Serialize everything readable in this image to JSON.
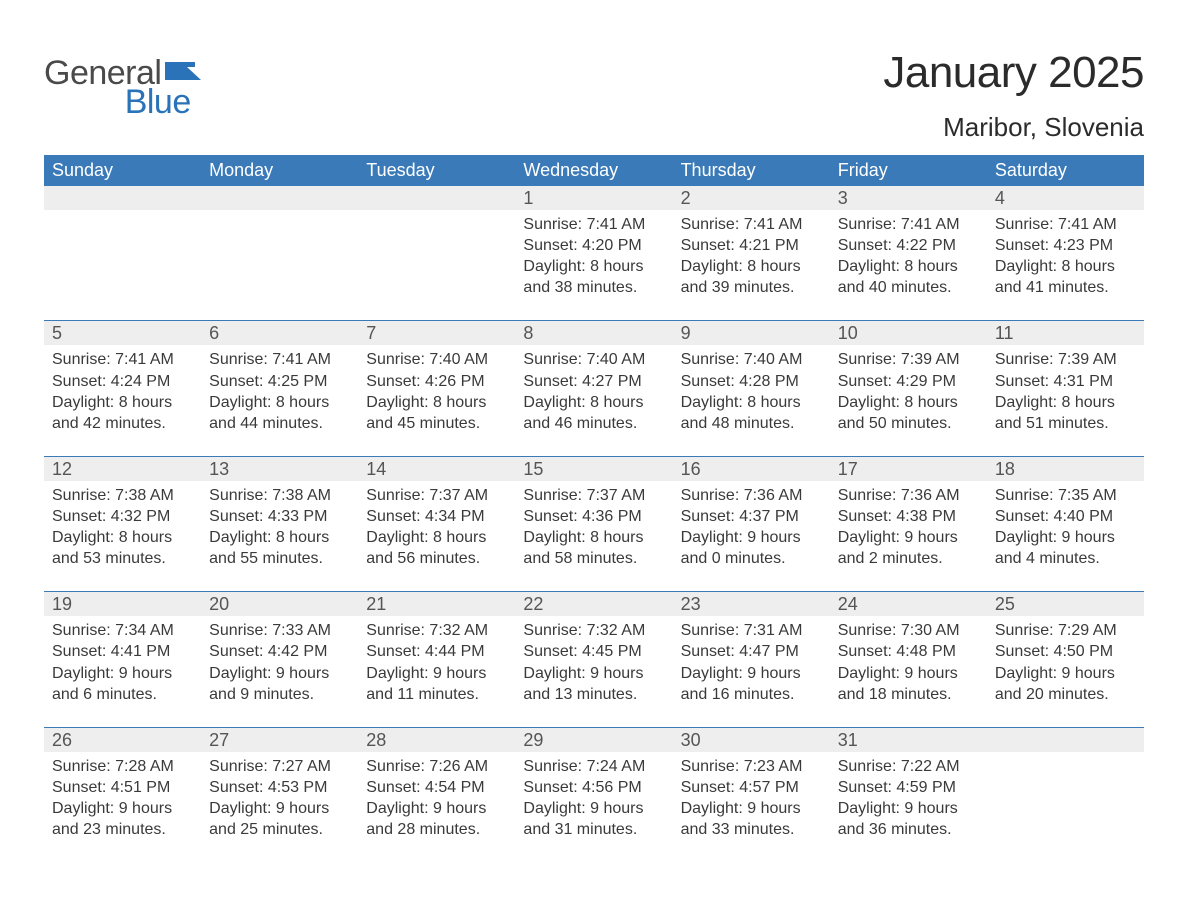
{
  "brand": {
    "text1": "General",
    "text2": "Blue",
    "flag_color": "#2a73b8",
    "text1_color": "#4a4a4a"
  },
  "title": "January 2025",
  "location": "Maribor, Slovenia",
  "colors": {
    "header_bg": "#3a7ab8",
    "header_text": "#ffffff",
    "daynum_bg": "#eeeeee",
    "week_divider": "#3a7ab8",
    "body_text": "#3a3a3a",
    "background": "#ffffff"
  },
  "typography": {
    "title_fontsize": 44,
    "location_fontsize": 26,
    "dayheader_fontsize": 18,
    "daynum_fontsize": 18,
    "cell_fontsize": 16
  },
  "day_headers": [
    "Sunday",
    "Monday",
    "Tuesday",
    "Wednesday",
    "Thursday",
    "Friday",
    "Saturday"
  ],
  "weeks": [
    [
      {
        "num": "",
        "sunrise": "",
        "sunset": "",
        "daylight1": "",
        "daylight2": ""
      },
      {
        "num": "",
        "sunrise": "",
        "sunset": "",
        "daylight1": "",
        "daylight2": ""
      },
      {
        "num": "",
        "sunrise": "",
        "sunset": "",
        "daylight1": "",
        "daylight2": ""
      },
      {
        "num": "1",
        "sunrise": "Sunrise: 7:41 AM",
        "sunset": "Sunset: 4:20 PM",
        "daylight1": "Daylight: 8 hours",
        "daylight2": "and 38 minutes."
      },
      {
        "num": "2",
        "sunrise": "Sunrise: 7:41 AM",
        "sunset": "Sunset: 4:21 PM",
        "daylight1": "Daylight: 8 hours",
        "daylight2": "and 39 minutes."
      },
      {
        "num": "3",
        "sunrise": "Sunrise: 7:41 AM",
        "sunset": "Sunset: 4:22 PM",
        "daylight1": "Daylight: 8 hours",
        "daylight2": "and 40 minutes."
      },
      {
        "num": "4",
        "sunrise": "Sunrise: 7:41 AM",
        "sunset": "Sunset: 4:23 PM",
        "daylight1": "Daylight: 8 hours",
        "daylight2": "and 41 minutes."
      }
    ],
    [
      {
        "num": "5",
        "sunrise": "Sunrise: 7:41 AM",
        "sunset": "Sunset: 4:24 PM",
        "daylight1": "Daylight: 8 hours",
        "daylight2": "and 42 minutes."
      },
      {
        "num": "6",
        "sunrise": "Sunrise: 7:41 AM",
        "sunset": "Sunset: 4:25 PM",
        "daylight1": "Daylight: 8 hours",
        "daylight2": "and 44 minutes."
      },
      {
        "num": "7",
        "sunrise": "Sunrise: 7:40 AM",
        "sunset": "Sunset: 4:26 PM",
        "daylight1": "Daylight: 8 hours",
        "daylight2": "and 45 minutes."
      },
      {
        "num": "8",
        "sunrise": "Sunrise: 7:40 AM",
        "sunset": "Sunset: 4:27 PM",
        "daylight1": "Daylight: 8 hours",
        "daylight2": "and 46 minutes."
      },
      {
        "num": "9",
        "sunrise": "Sunrise: 7:40 AM",
        "sunset": "Sunset: 4:28 PM",
        "daylight1": "Daylight: 8 hours",
        "daylight2": "and 48 minutes."
      },
      {
        "num": "10",
        "sunrise": "Sunrise: 7:39 AM",
        "sunset": "Sunset: 4:29 PM",
        "daylight1": "Daylight: 8 hours",
        "daylight2": "and 50 minutes."
      },
      {
        "num": "11",
        "sunrise": "Sunrise: 7:39 AM",
        "sunset": "Sunset: 4:31 PM",
        "daylight1": "Daylight: 8 hours",
        "daylight2": "and 51 minutes."
      }
    ],
    [
      {
        "num": "12",
        "sunrise": "Sunrise: 7:38 AM",
        "sunset": "Sunset: 4:32 PM",
        "daylight1": "Daylight: 8 hours",
        "daylight2": "and 53 minutes."
      },
      {
        "num": "13",
        "sunrise": "Sunrise: 7:38 AM",
        "sunset": "Sunset: 4:33 PM",
        "daylight1": "Daylight: 8 hours",
        "daylight2": "and 55 minutes."
      },
      {
        "num": "14",
        "sunrise": "Sunrise: 7:37 AM",
        "sunset": "Sunset: 4:34 PM",
        "daylight1": "Daylight: 8 hours",
        "daylight2": "and 56 minutes."
      },
      {
        "num": "15",
        "sunrise": "Sunrise: 7:37 AM",
        "sunset": "Sunset: 4:36 PM",
        "daylight1": "Daylight: 8 hours",
        "daylight2": "and 58 minutes."
      },
      {
        "num": "16",
        "sunrise": "Sunrise: 7:36 AM",
        "sunset": "Sunset: 4:37 PM",
        "daylight1": "Daylight: 9 hours",
        "daylight2": "and 0 minutes."
      },
      {
        "num": "17",
        "sunrise": "Sunrise: 7:36 AM",
        "sunset": "Sunset: 4:38 PM",
        "daylight1": "Daylight: 9 hours",
        "daylight2": "and 2 minutes."
      },
      {
        "num": "18",
        "sunrise": "Sunrise: 7:35 AM",
        "sunset": "Sunset: 4:40 PM",
        "daylight1": "Daylight: 9 hours",
        "daylight2": "and 4 minutes."
      }
    ],
    [
      {
        "num": "19",
        "sunrise": "Sunrise: 7:34 AM",
        "sunset": "Sunset: 4:41 PM",
        "daylight1": "Daylight: 9 hours",
        "daylight2": "and 6 minutes."
      },
      {
        "num": "20",
        "sunrise": "Sunrise: 7:33 AM",
        "sunset": "Sunset: 4:42 PM",
        "daylight1": "Daylight: 9 hours",
        "daylight2": "and 9 minutes."
      },
      {
        "num": "21",
        "sunrise": "Sunrise: 7:32 AM",
        "sunset": "Sunset: 4:44 PM",
        "daylight1": "Daylight: 9 hours",
        "daylight2": "and 11 minutes."
      },
      {
        "num": "22",
        "sunrise": "Sunrise: 7:32 AM",
        "sunset": "Sunset: 4:45 PM",
        "daylight1": "Daylight: 9 hours",
        "daylight2": "and 13 minutes."
      },
      {
        "num": "23",
        "sunrise": "Sunrise: 7:31 AM",
        "sunset": "Sunset: 4:47 PM",
        "daylight1": "Daylight: 9 hours",
        "daylight2": "and 16 minutes."
      },
      {
        "num": "24",
        "sunrise": "Sunrise: 7:30 AM",
        "sunset": "Sunset: 4:48 PM",
        "daylight1": "Daylight: 9 hours",
        "daylight2": "and 18 minutes."
      },
      {
        "num": "25",
        "sunrise": "Sunrise: 7:29 AM",
        "sunset": "Sunset: 4:50 PM",
        "daylight1": "Daylight: 9 hours",
        "daylight2": "and 20 minutes."
      }
    ],
    [
      {
        "num": "26",
        "sunrise": "Sunrise: 7:28 AM",
        "sunset": "Sunset: 4:51 PM",
        "daylight1": "Daylight: 9 hours",
        "daylight2": "and 23 minutes."
      },
      {
        "num": "27",
        "sunrise": "Sunrise: 7:27 AM",
        "sunset": "Sunset: 4:53 PM",
        "daylight1": "Daylight: 9 hours",
        "daylight2": "and 25 minutes."
      },
      {
        "num": "28",
        "sunrise": "Sunrise: 7:26 AM",
        "sunset": "Sunset: 4:54 PM",
        "daylight1": "Daylight: 9 hours",
        "daylight2": "and 28 minutes."
      },
      {
        "num": "29",
        "sunrise": "Sunrise: 7:24 AM",
        "sunset": "Sunset: 4:56 PM",
        "daylight1": "Daylight: 9 hours",
        "daylight2": "and 31 minutes."
      },
      {
        "num": "30",
        "sunrise": "Sunrise: 7:23 AM",
        "sunset": "Sunset: 4:57 PM",
        "daylight1": "Daylight: 9 hours",
        "daylight2": "and 33 minutes."
      },
      {
        "num": "31",
        "sunrise": "Sunrise: 7:22 AM",
        "sunset": "Sunset: 4:59 PM",
        "daylight1": "Daylight: 9 hours",
        "daylight2": "and 36 minutes."
      },
      {
        "num": "",
        "sunrise": "",
        "sunset": "",
        "daylight1": "",
        "daylight2": ""
      }
    ]
  ]
}
